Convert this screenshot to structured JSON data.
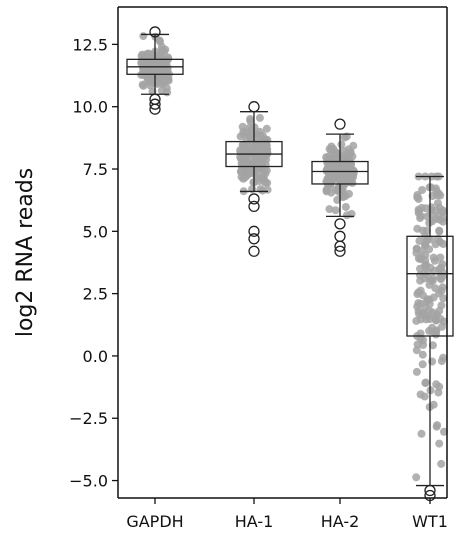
{
  "chart_data": {
    "type": "box",
    "ylabel": "log2 RNA reads",
    "xlabel": "",
    "ylim": [
      -5.7,
      14.0
    ],
    "yticks": [
      {
        "value": 12.5,
        "label": "12.5"
      },
      {
        "value": 10.0,
        "label": "10.0"
      },
      {
        "value": 7.5,
        "label": "7.5"
      },
      {
        "value": 5.0,
        "label": "5.0"
      },
      {
        "value": 2.5,
        "label": "2.5"
      },
      {
        "value": 0.0,
        "label": "0.0"
      },
      {
        "value": -2.5,
        "label": "−2.5"
      },
      {
        "value": -5.0,
        "label": "−5.0"
      }
    ],
    "categories": [
      "GAPDH",
      "HA-1",
      "HA-2",
      "WT1"
    ],
    "boxes": [
      {
        "category": "GAPDH",
        "whisker_low": 10.5,
        "q1": 11.3,
        "median": 11.6,
        "q3": 11.9,
        "whisker_high": 12.9,
        "outliers": [
          9.9,
          10.1,
          10.3,
          13.0
        ],
        "points_range": [
          9.9,
          13.0
        ]
      },
      {
        "category": "HA-1",
        "whisker_low": 6.6,
        "q1": 7.6,
        "median": 8.1,
        "q3": 8.6,
        "whisker_high": 9.8,
        "outliers": [
          10.0,
          6.3,
          6.0,
          5.0,
          4.7,
          4.2
        ],
        "points_range": [
          4.2,
          10.0
        ]
      },
      {
        "category": "HA-2",
        "whisker_low": 5.6,
        "q1": 6.9,
        "median": 7.4,
        "q3": 7.8,
        "whisker_high": 8.9,
        "outliers": [
          9.3,
          5.3,
          4.8,
          4.4,
          4.2
        ],
        "points_range": [
          4.2,
          9.3
        ]
      },
      {
        "category": "WT1",
        "whisker_low": -5.2,
        "q1": 0.8,
        "median": 3.3,
        "q3": 4.8,
        "whisker_high": 7.2,
        "outliers": [
          -5.4,
          -5.6
        ],
        "points_range": [
          -5.6,
          7.2
        ]
      }
    ],
    "colors": {
      "points": "#a3a3a3",
      "box": "#222222",
      "outlier": "#222222",
      "axis": "#111111"
    },
    "grid": false,
    "legend": "none"
  }
}
